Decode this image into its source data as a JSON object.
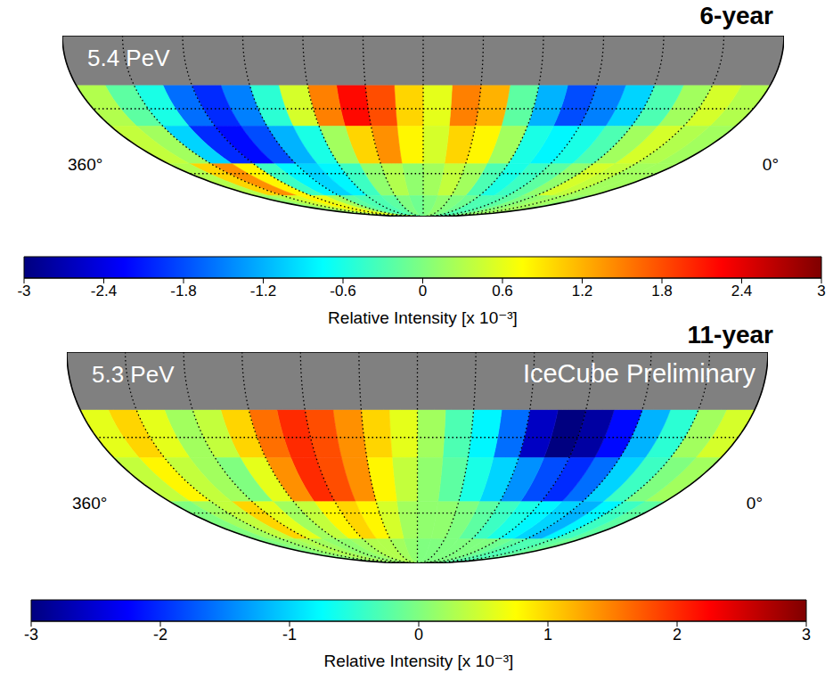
{
  "chart_data": [
    {
      "type": "heatmap",
      "title": "6-year",
      "annotation": "5.4 PeV",
      "xlim": [
        360,
        0
      ],
      "ylim": [
        -90,
        0
      ],
      "xticks": [
        {
          "value": 360,
          "label": "360°"
        },
        {
          "value": 0,
          "label": "0°"
        }
      ],
      "grid": true,
      "grid_ra": [
        30,
        60,
        90,
        120,
        150,
        180,
        210,
        240,
        270,
        300,
        330
      ],
      "grid_dec": [
        -30,
        -60
      ],
      "masked_dec": [
        -20,
        0
      ],
      "ra_bins": [
        0,
        15,
        30,
        45,
        60,
        75,
        90,
        105,
        120,
        135,
        150,
        165,
        180,
        195,
        210,
        225,
        240,
        255,
        270,
        285,
        300,
        315,
        330,
        345,
        360
      ],
      "dec_bins": [
        -20,
        -37.5,
        -55,
        -72.5,
        -90
      ],
      "cells": [
        [
          0.3,
          0.5,
          0.2,
          -0.3,
          -1.0,
          -1.5,
          -1.8,
          -1.2,
          -0.2,
          1.2,
          1.5,
          0.6,
          1.0,
          1.8,
          2.2,
          1.5,
          0.5,
          -0.5,
          -1.5,
          -2.0,
          -1.6,
          -0.6,
          -0.2,
          0.3
        ],
        [
          0.2,
          0.3,
          0.5,
          0.2,
          -0.3,
          -0.6,
          -0.8,
          -0.6,
          0.2,
          0.8,
          1.0,
          0.5,
          0.8,
          1.4,
          1.0,
          0.2,
          -0.6,
          -1.2,
          -1.8,
          -2.2,
          -2.0,
          -1.0,
          0.2,
          0.4
        ],
        [
          0.2,
          0.2,
          0.4,
          0.5,
          0.1,
          -0.2,
          -0.4,
          -0.6,
          -0.3,
          0.2,
          0.4,
          0.2,
          0.1,
          0.3,
          0.1,
          -0.4,
          -0.8,
          -1.0,
          -0.8,
          -0.4,
          0.8,
          1.4,
          1.0,
          0.3
        ],
        [
          0.1,
          0.2,
          0.2,
          0.1,
          0,
          -0.2,
          -0.3,
          -0.3,
          -0.1,
          0,
          0.1,
          0,
          -0.1,
          0,
          -0.2,
          -0.3,
          -0.3,
          -0.2,
          0.2,
          0.6,
          0.8,
          0.5,
          0.3,
          0.1
        ]
      ],
      "colorbar": {
        "range": [
          -3,
          3
        ],
        "ticks": [
          -3,
          -2.4,
          -1.8,
          -1.2,
          -0.6,
          0,
          0.6,
          1.2,
          1.8,
          2.4,
          3
        ],
        "label": "Relative Intensity [x 10⁻³]"
      }
    },
    {
      "type": "heatmap",
      "title": "11-year",
      "annotation": "5.3 PeV",
      "watermark": "IceCube Preliminary",
      "xlim": [
        360,
        0
      ],
      "ylim": [
        -90,
        0
      ],
      "xticks": [
        {
          "value": 360,
          "label": "360°"
        },
        {
          "value": 0,
          "label": "0°"
        }
      ],
      "grid": true,
      "grid_ra": [
        30,
        60,
        90,
        120,
        150,
        180,
        210,
        240,
        270,
        300,
        330
      ],
      "grid_dec": [
        -30,
        -60
      ],
      "masked_dec": [
        -20,
        0
      ],
      "ra_bins": [
        0,
        15,
        30,
        45,
        60,
        75,
        90,
        105,
        120,
        135,
        150,
        165,
        180,
        195,
        210,
        225,
        240,
        255,
        270,
        285,
        300,
        315,
        330,
        345,
        360
      ],
      "dec_bins": [
        -20,
        -37.5,
        -55,
        -72.5,
        -90
      ],
      "cells": [
        [
          0.5,
          0.2,
          -0.5,
          -1.2,
          -2.2,
          -2.8,
          -3.0,
          -2.6,
          -1.6,
          -0.8,
          -0.3,
          0.2,
          0.6,
          1.0,
          1.4,
          1.8,
          2.0,
          1.6,
          1.0,
          0.4,
          0.2,
          0.6,
          1.0,
          0.6
        ],
        [
          0.2,
          0,
          -0.4,
          -1.0,
          -1.6,
          -2.0,
          -1.8,
          -1.4,
          -1.0,
          -0.6,
          -0.2,
          0.1,
          0.4,
          0.8,
          1.4,
          1.8,
          2.0,
          1.4,
          0.6,
          0,
          0.2,
          0.4,
          0.8,
          0.4
        ],
        [
          -0.2,
          -0.4,
          -0.8,
          -1.2,
          -1.0,
          -0.8,
          -0.6,
          -0.4,
          -0.2,
          0,
          0.1,
          0.1,
          0.2,
          0.5,
          0.8,
          1.0,
          0.8,
          0.4,
          0.2,
          0.6,
          1.0,
          0.4,
          0.2,
          0
        ],
        [
          -0.1,
          -0.2,
          -0.3,
          -0.3,
          -0.2,
          -0.1,
          0,
          0,
          0,
          0,
          0,
          0,
          0.1,
          0.2,
          0.3,
          0.3,
          0.2,
          0.1,
          0.1,
          0.2,
          0.3,
          0.2,
          0.1,
          0
        ]
      ],
      "colorbar": {
        "range": [
          -3,
          3
        ],
        "ticks": [
          -3,
          -2,
          -1,
          0,
          1,
          2,
          3
        ],
        "label": "Relative Intensity [x 10⁻³]"
      }
    }
  ]
}
